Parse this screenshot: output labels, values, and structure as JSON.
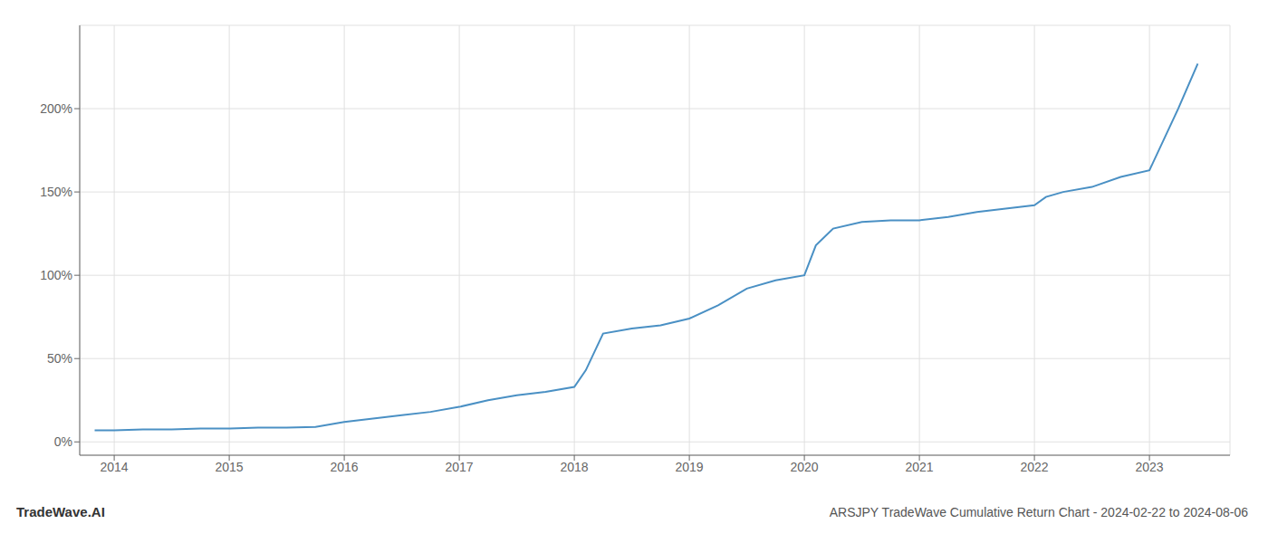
{
  "chart_data": {
    "type": "line",
    "title": "ARSJPY TradeWave Cumulative Return Chart - 2024-02-22 to 2024-08-06",
    "annotations": [
      "TradeWave.AI"
    ],
    "x": [
      2013.83,
      2014.0,
      2014.25,
      2014.5,
      2014.75,
      2015.0,
      2015.25,
      2015.5,
      2015.75,
      2016.0,
      2016.25,
      2016.5,
      2016.75,
      2017.0,
      2017.25,
      2017.5,
      2017.75,
      2018.0,
      2018.1,
      2018.25,
      2018.5,
      2018.75,
      2019.0,
      2019.25,
      2019.5,
      2019.75,
      2020.0,
      2020.1,
      2020.25,
      2020.5,
      2020.75,
      2021.0,
      2021.25,
      2021.5,
      2021.75,
      2022.0,
      2022.1,
      2022.25,
      2022.5,
      2022.75,
      2023.0,
      2023.25,
      2023.42
    ],
    "values": [
      7,
      7,
      7.5,
      7.5,
      8,
      8,
      8.5,
      8.5,
      9,
      12,
      14,
      16,
      18,
      21,
      25,
      28,
      30,
      33,
      43,
      65,
      68,
      70,
      74,
      82,
      92,
      97,
      100,
      118,
      128,
      132,
      133,
      133,
      135,
      138,
      140,
      142,
      147,
      150,
      153,
      159,
      163,
      200,
      227
    ],
    "color": "#4a90c4",
    "xlim": [
      2013.7,
      2023.7
    ],
    "xticks": [
      2014,
      2015,
      2016,
      2017,
      2018,
      2019,
      2020,
      2021,
      2022,
      2023
    ],
    "ylim": [
      -8,
      250
    ],
    "yticks": [
      {
        "value": 0,
        "label": "0%"
      },
      {
        "value": 50,
        "label": "50%"
      },
      {
        "value": 100,
        "label": "100%"
      },
      {
        "value": 150,
        "label": "150%"
      },
      {
        "value": 200,
        "label": "200%"
      }
    ],
    "grid": true
  }
}
